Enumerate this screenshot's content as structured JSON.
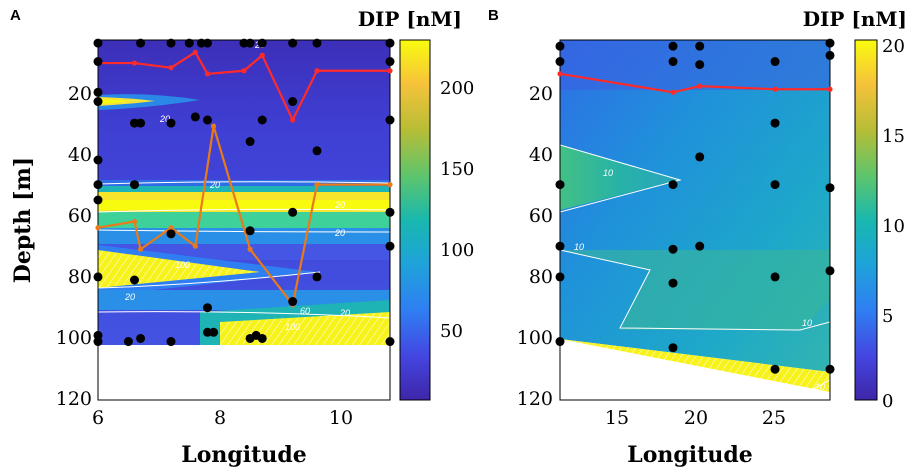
{
  "panels": [
    {
      "letter": "A",
      "colorbar_title": "DIP [nM]",
      "colorbar_ticks": [
        "200",
        "150",
        "100",
        "50"
      ],
      "xlabel": "Longitude",
      "ylabel": "Depth [m]",
      "x_ticks": [
        "6",
        "8",
        "10"
      ],
      "y_ticks": [
        "20",
        "40",
        "60",
        "80",
        "100",
        "120"
      ]
    },
    {
      "letter": "B",
      "colorbar_title": "DIP [nM]",
      "colorbar_ticks": [
        "20",
        "15",
        "10",
        "5",
        "0"
      ],
      "xlabel": "Longitude",
      "x_ticks": [
        "15",
        "20",
        "25"
      ],
      "y_ticks": [
        "20",
        "40",
        "60",
        "80",
        "100",
        "120"
      ]
    }
  ],
  "chart_data": [
    {
      "type": "heatmap",
      "panel": "A",
      "xlabel": "Longitude",
      "ylabel": "Depth [m]",
      "xlim": [
        6,
        10.8
      ],
      "ylim": [
        120,
        3
      ],
      "colorbar": {
        "label": "DIP [nM]",
        "range": [
          0,
          225
        ],
        "ticks": [
          50,
          100,
          150,
          200
        ]
      },
      "contour_labels": [
        "20",
        "20",
        "20",
        "20",
        "20",
        "20",
        "60",
        "100",
        "20",
        "100"
      ],
      "sample_points": [
        [
          6,
          4
        ],
        [
          6,
          10
        ],
        [
          6,
          20
        ],
        [
          6,
          23
        ],
        [
          6,
          42
        ],
        [
          6,
          50
        ],
        [
          6,
          55
        ],
        [
          6,
          80
        ],
        [
          6,
          99
        ],
        [
          6,
          101
        ],
        [
          6.5,
          101
        ],
        [
          6.6,
          30
        ],
        [
          6.6,
          50
        ],
        [
          6.6,
          81
        ],
        [
          6.7,
          4
        ],
        [
          6.7,
          30
        ],
        [
          6.7,
          100
        ],
        [
          7.2,
          4
        ],
        [
          7.2,
          30
        ],
        [
          7.2,
          66
        ],
        [
          7.2,
          101
        ],
        [
          7.5,
          4
        ],
        [
          7.6,
          28
        ],
        [
          7.7,
          4
        ],
        [
          7.8,
          4
        ],
        [
          7.8,
          29
        ],
        [
          7.8,
          90
        ],
        [
          7.8,
          98
        ],
        [
          7.9,
          98
        ],
        [
          8.4,
          4
        ],
        [
          8.5,
          4
        ],
        [
          8.5,
          36
        ],
        [
          8.5,
          65
        ],
        [
          8.5,
          100
        ],
        [
          8.6,
          99
        ],
        [
          8.7,
          4
        ],
        [
          8.7,
          29
        ],
        [
          8.7,
          100
        ],
        [
          9.2,
          4
        ],
        [
          9.2,
          23
        ],
        [
          9.2,
          59
        ],
        [
          9.2,
          88
        ],
        [
          9.6,
          4
        ],
        [
          9.6,
          39
        ],
        [
          9.6,
          80
        ],
        [
          10.8,
          4
        ],
        [
          10.8,
          10
        ],
        [
          10.8,
          29
        ],
        [
          10.8,
          59
        ],
        [
          10.8,
          70
        ],
        [
          10.8,
          101
        ]
      ],
      "lines": [
        {
          "color": "#ff2a2a",
          "points": [
            [
              6,
              10.5
            ],
            [
              6.6,
              10.5
            ],
            [
              7.2,
              12
            ],
            [
              7.6,
              7
            ],
            [
              7.8,
              14
            ],
            [
              8.4,
              13
            ],
            [
              8.7,
              8
            ],
            [
              9.2,
              29
            ],
            [
              9.6,
              13
            ],
            [
              10.8,
              13
            ]
          ]
        },
        {
          "color": "#e87a1a",
          "points": [
            [
              6,
              64
            ],
            [
              6.6,
              62
            ],
            [
              6.7,
              71
            ],
            [
              7.2,
              64
            ],
            [
              7.6,
              70
            ],
            [
              7.9,
              31
            ],
            [
              8.5,
              71
            ],
            [
              9.2,
              89
            ],
            [
              9.6,
              50
            ],
            [
              10.8,
              50
            ]
          ]
        }
      ]
    },
    {
      "type": "heatmap",
      "panel": "B",
      "xlabel": "Longitude",
      "ylabel": "Depth [m]",
      "xlim": [
        11.3,
        28.5
      ],
      "ylim": [
        120,
        3
      ],
      "colorbar": {
        "label": "DIP [nM]",
        "range": [
          0,
          20
        ],
        "ticks": [
          0,
          5,
          10,
          15,
          20
        ]
      },
      "contour_labels": [
        "10",
        "10",
        "10",
        "10"
      ],
      "sample_points": [
        [
          11.3,
          5
        ],
        [
          11.3,
          10
        ],
        [
          11.3,
          50
        ],
        [
          11.3,
          70
        ],
        [
          11.3,
          80
        ],
        [
          11.3,
          101
        ],
        [
          18.5,
          5
        ],
        [
          18.5,
          10
        ],
        [
          18.5,
          50
        ],
        [
          18.5,
          71
        ],
        [
          18.5,
          82
        ],
        [
          18.5,
          103
        ],
        [
          20.2,
          5
        ],
        [
          20.2,
          11
        ],
        [
          20.2,
          41
        ],
        [
          20.2,
          70
        ],
        [
          25,
          10
        ],
        [
          25,
          30
        ],
        [
          25,
          50
        ],
        [
          25,
          80
        ],
        [
          25,
          110
        ],
        [
          28.5,
          4
        ],
        [
          28.5,
          8
        ],
        [
          28.5,
          51
        ],
        [
          28.5,
          78
        ],
        [
          28.5,
          110
        ]
      ],
      "lines": [
        {
          "color": "#ff2a2a",
          "points": [
            [
              11.3,
              14
            ],
            [
              18.5,
              20
            ],
            [
              20.2,
              18
            ],
            [
              25,
              19
            ],
            [
              28.5,
              19
            ]
          ]
        }
      ]
    }
  ]
}
